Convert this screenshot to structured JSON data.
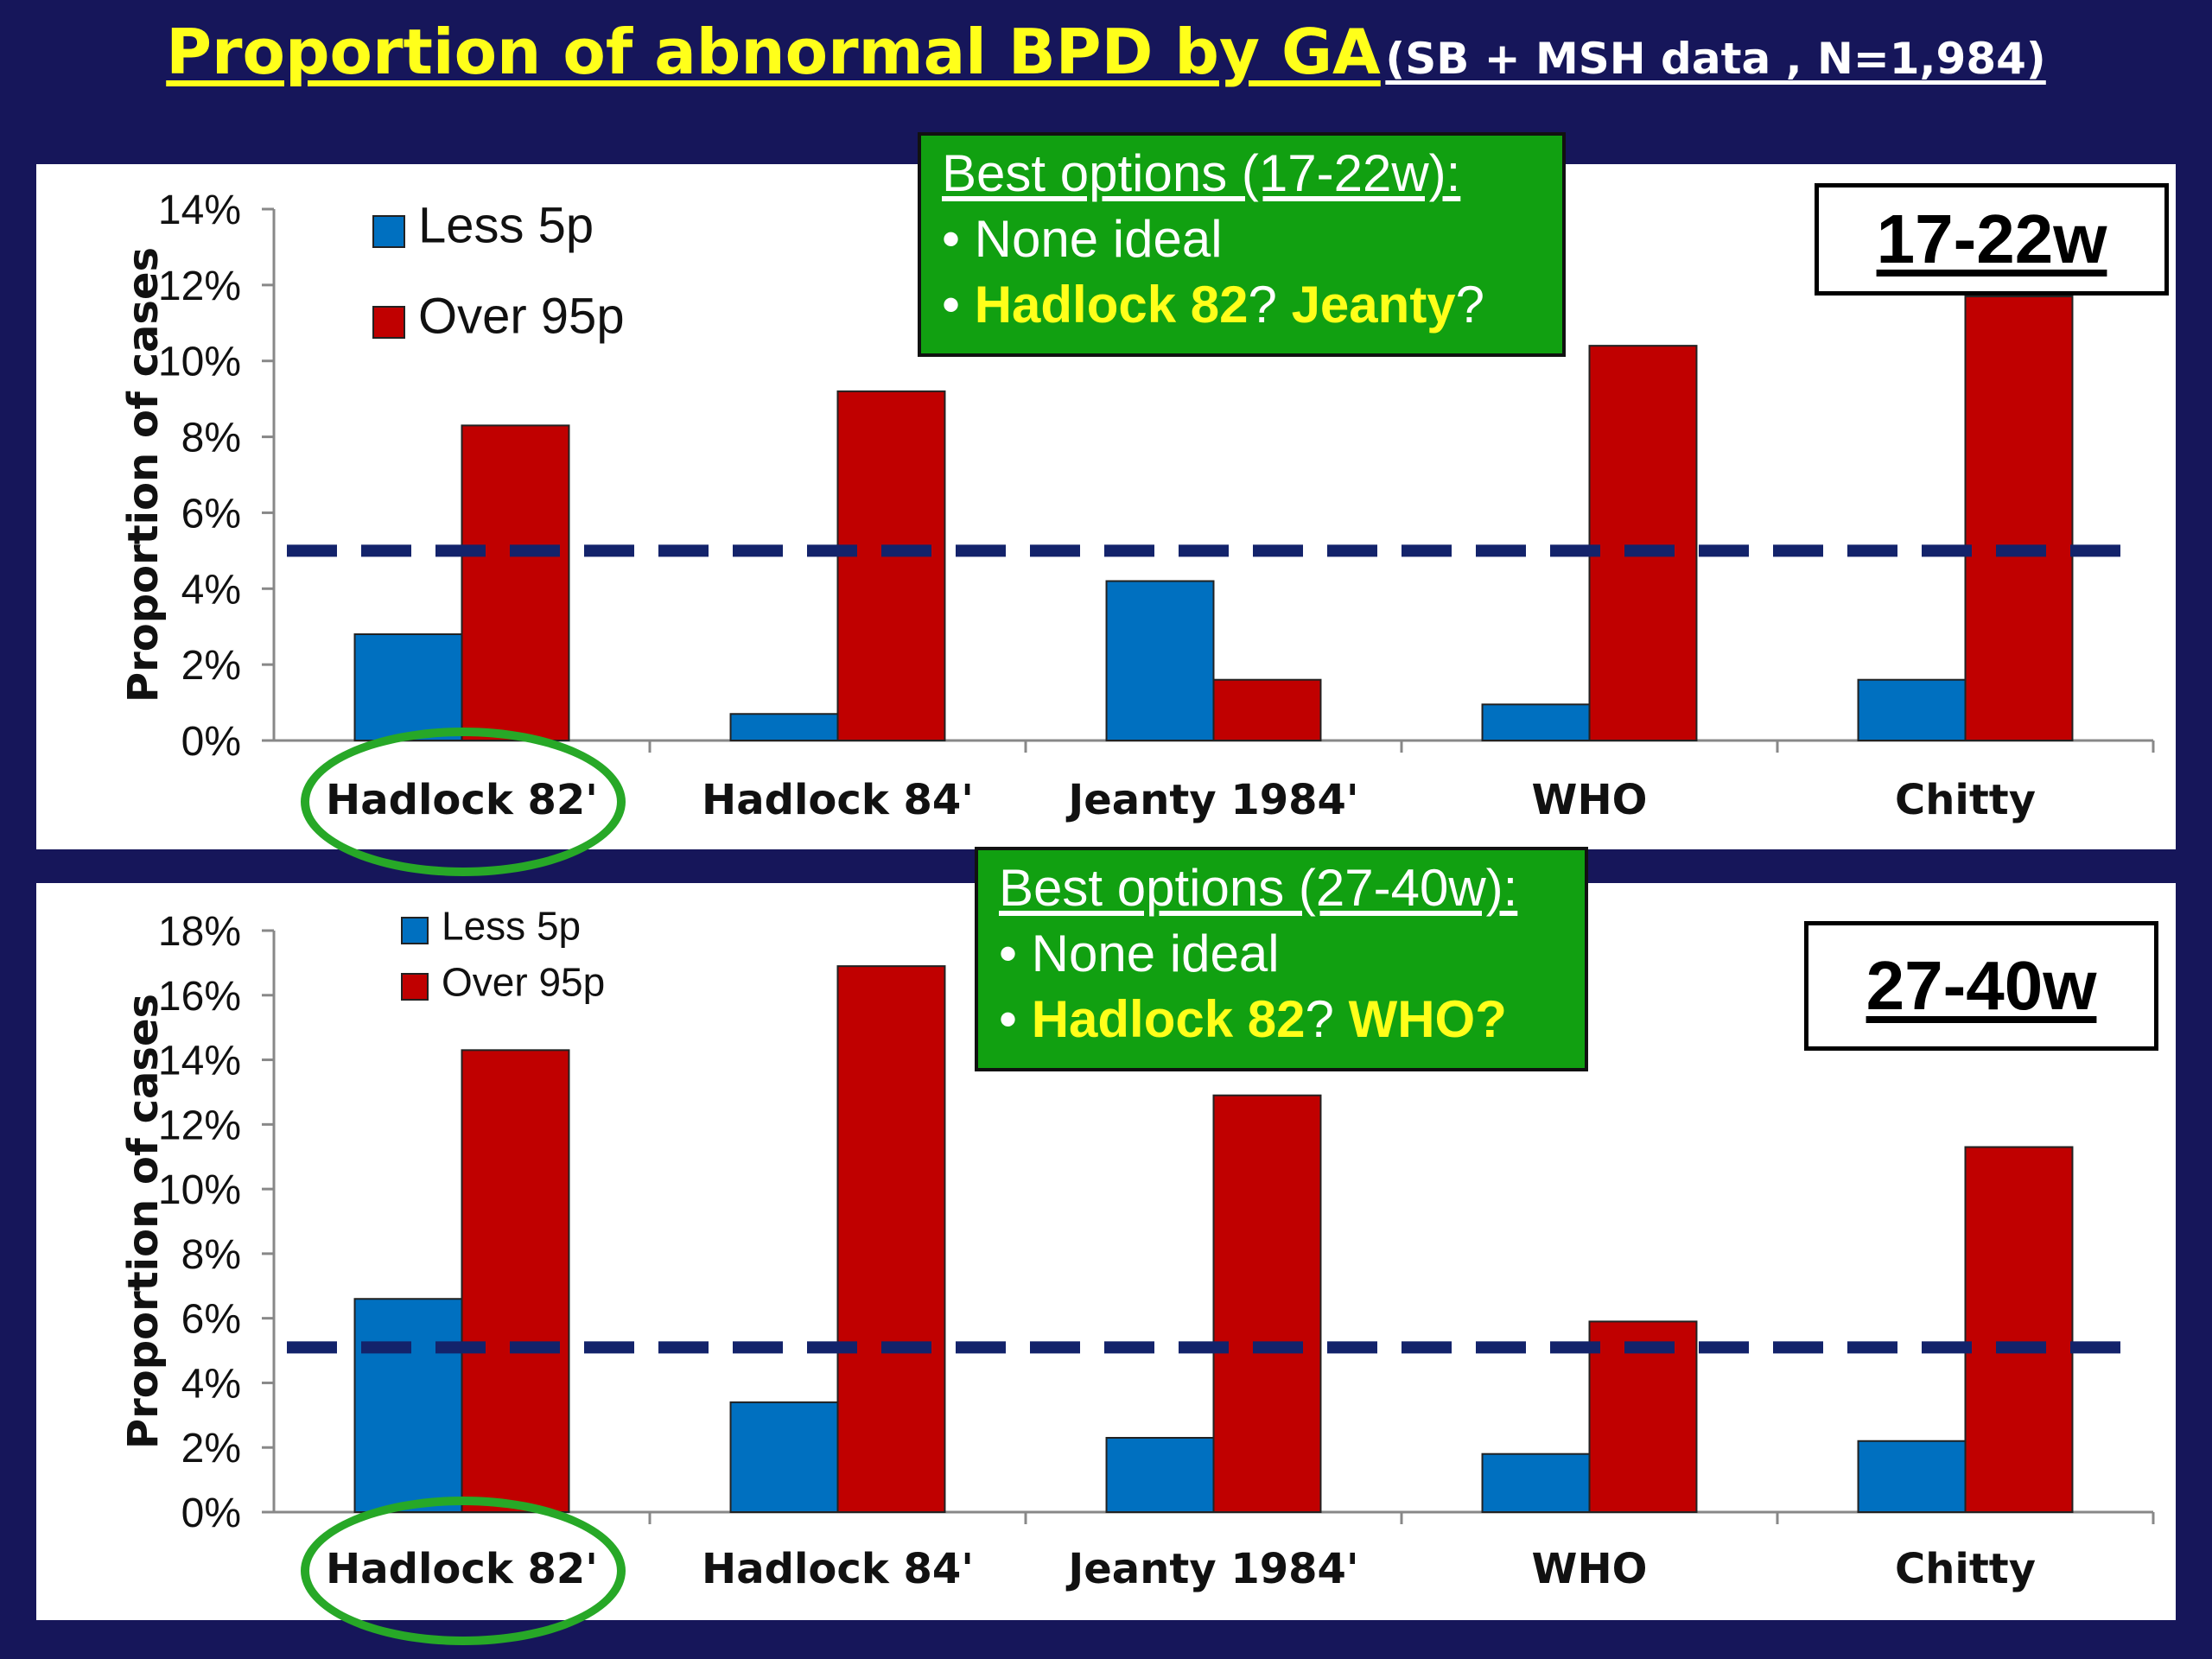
{
  "title": {
    "main": "Proportion of abnormal BPD by GA",
    "sub": "(SB + MSH data , N=1,984)"
  },
  "colors": {
    "background": "#16165a",
    "less5p": "#0070c0",
    "over95p": "#c00000",
    "reference_line": "#13236b",
    "callout_bg": "#11a011",
    "highlight_ring": "#27a827",
    "highlight_text": "#ffff1a"
  },
  "callouts": [
    {
      "heading": "Best options (17-22w):",
      "line1": "• None ideal",
      "line2_bold1": "Hadlock 82",
      "line2_mid": "? ",
      "line2_bold2": "Jeanty",
      "line2_end": "?"
    },
    {
      "heading": "Best options (27-40w):",
      "line1": "• None ideal",
      "line2_bold1": "Hadlock 82",
      "line2_mid": "? ",
      "line2_bold2": "WHO?",
      "line2_end": ""
    }
  ],
  "period_labels": [
    "17-22w",
    "27-40w"
  ],
  "highlight_icon": "green-ellipse-ring",
  "chart_data": [
    {
      "type": "bar",
      "categories": [
        "Hadlock 82'",
        "Hadlock 84'",
        "Jeanty 1984'",
        "WHO",
        "Chitty"
      ],
      "series": [
        {
          "name": "Less 5p",
          "values": [
            2.8,
            0.7,
            4.2,
            0.95,
            1.6
          ]
        },
        {
          "name": "Over 95p",
          "values": [
            8.3,
            9.2,
            1.6,
            10.4,
            11.7
          ]
        }
      ],
      "ylabel": "Proportion of cases",
      "ylim": [
        0,
        14
      ],
      "yticks": [
        "0%",
        "2%",
        "4%",
        "6%",
        "8%",
        "10%",
        "12%",
        "14%"
      ],
      "ytick_step": 2,
      "reference_line": 5,
      "legend_position": "top-left",
      "grid": false,
      "highlighted_category": "Hadlock 82'"
    },
    {
      "type": "bar",
      "categories": [
        "Hadlock 82'",
        "Hadlock 84'",
        "Jeanty 1984'",
        "WHO",
        "Chitty"
      ],
      "series": [
        {
          "name": "Less 5p",
          "values": [
            6.6,
            3.4,
            2.3,
            1.8,
            2.2
          ]
        },
        {
          "name": "Over 95p",
          "values": [
            14.3,
            16.9,
            12.9,
            5.9,
            11.3
          ]
        }
      ],
      "ylabel": "Proportion of cases",
      "ylim": [
        0,
        18
      ],
      "yticks": [
        "0%",
        "2%",
        "4%",
        "6%",
        "8%",
        "10%",
        "12%",
        "14%",
        "16%",
        "18%"
      ],
      "ytick_step": 2,
      "reference_line": 5.1,
      "legend_position": "top-left",
      "grid": false,
      "highlighted_category": "Hadlock 82'"
    }
  ]
}
